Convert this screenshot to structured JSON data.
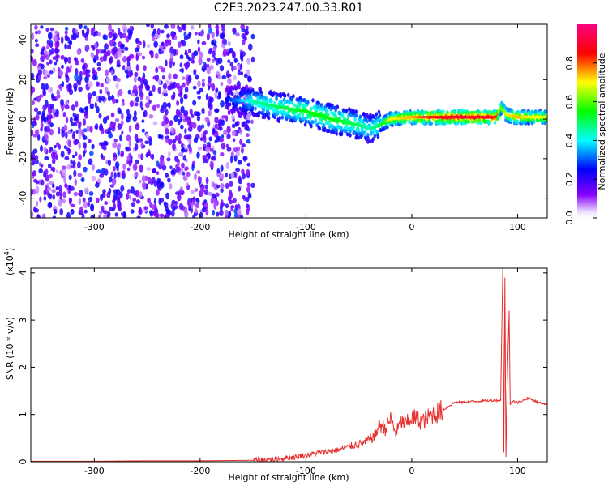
{
  "title": "C2E3.2023.247.00.33.R01",
  "chart_data": [
    {
      "type": "heatmap",
      "xlabel": "Height of straight line (km)",
      "ylabel": "Frequency (Hz)",
      "xlim": [
        -360,
        128
      ],
      "ylim": [
        -50,
        48
      ],
      "x_ticks": [
        -300,
        -200,
        -100,
        0,
        100
      ],
      "y_ticks": [
        -40,
        -20,
        0,
        20,
        40
      ],
      "colorbar": {
        "label": "Normalized spectral amplitude",
        "range": [
          0,
          1
        ],
        "ticks": [
          0.0,
          0.2,
          0.4,
          0.6,
          0.8
        ],
        "tick_labels": [
          "0.0",
          "0.2",
          "0.4",
          "0.6",
          "0.8"
        ],
        "colors": [
          "#ffffff",
          "#8800ff",
          "#0000ff",
          "#00ffff",
          "#00ff00",
          "#ffff00",
          "#ff0000",
          "#ff0080"
        ]
      },
      "ridge": {
        "x": [
          -175,
          -150,
          -125,
          -100,
          -75,
          -50,
          -40,
          -30,
          -20,
          0,
          20,
          40,
          60,
          80,
          85,
          90,
          100,
          110,
          128
        ],
        "y": [
          10,
          9,
          6,
          4,
          0,
          -3,
          -5,
          -3,
          0,
          1,
          1,
          1,
          1,
          1,
          6,
          2,
          1,
          1,
          1
        ],
        "amplitude": [
          0.25,
          0.45,
          0.5,
          0.55,
          0.55,
          0.5,
          0.45,
          0.5,
          0.7,
          0.75,
          0.85,
          0.9,
          0.9,
          0.85,
          0.6,
          0.7,
          0.75,
          0.7,
          0.7
        ]
      },
      "noise_region_x": [
        -360,
        -170
      ],
      "noise_amplitude": [
        0.05,
        0.25
      ]
    },
    {
      "type": "line",
      "xlabel": "Height of straight line (km)",
      "ylabel": "SNR (10 * v/v)",
      "multiplier_label": "(x10",
      "multiplier_exponent": "4",
      "xlim": [
        -360,
        128
      ],
      "ylim": [
        0,
        4.1
      ],
      "x_ticks": [
        -300,
        -200,
        -100,
        0,
        100
      ],
      "y_ticks": [
        0,
        1,
        2,
        3,
        4
      ],
      "color": "#e83030",
      "series": [
        {
          "x": [
            -360,
            -300,
            -250,
            -200,
            -150,
            -130,
            -110,
            -90,
            -70,
            -55,
            -45,
            -35,
            -30,
            -25,
            -20,
            -15,
            -10,
            -5,
            0,
            10,
            20,
            30,
            40,
            60,
            80,
            84,
            86,
            87,
            88,
            89,
            90,
            92,
            93,
            95,
            100,
            110,
            120,
            128
          ],
          "y": [
            0.01,
            0.01,
            0.02,
            0.02,
            0.03,
            0.05,
            0.1,
            0.18,
            0.25,
            0.35,
            0.4,
            0.55,
            0.8,
            0.7,
            0.9,
            0.6,
            0.85,
            0.8,
            0.95,
            0.85,
            1.0,
            1.1,
            1.25,
            1.28,
            1.3,
            1.3,
            4.1,
            0.2,
            3.9,
            0.1,
            1.5,
            3.2,
            1.2,
            1.3,
            1.25,
            1.35,
            1.25,
            1.22
          ]
        }
      ]
    }
  ]
}
